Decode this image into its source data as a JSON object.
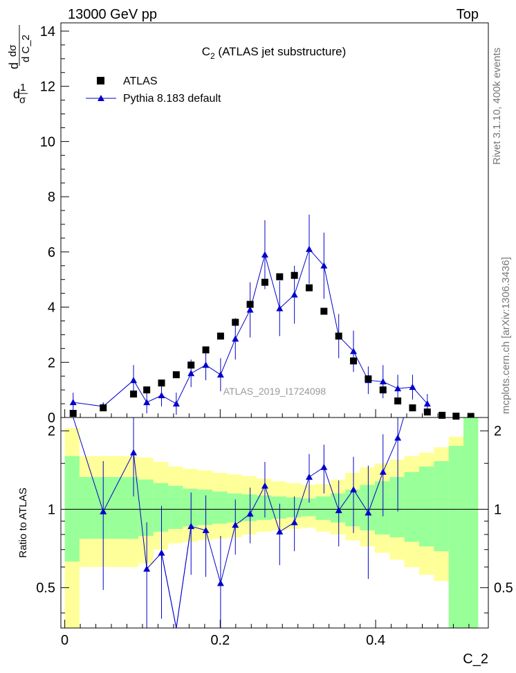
{
  "header": {
    "energy_label": "13000 GeV pp",
    "process_label": "Top"
  },
  "side_labels": {
    "rivet": "Rivet 3.1.10,  400k events",
    "mcplots": "mcplots.cern.ch [arXiv:1306.3436]"
  },
  "chart_data": [
    {
      "type": "scatter",
      "panel": "main",
      "title": "C_2 (ATLAS jet substructure)",
      "title_main": "C",
      "title_sub": "2",
      "title_rest": " (ATLAS jet substructure)",
      "xlabel": "C_2",
      "ylabel": "1/σ dσ/dC_2",
      "ylabel_parts": {
        "one": "1",
        "d1": "d",
        "sigma": "σ",
        "d2": "d",
        "dsigma": "dσ",
        "dc2": "d C_2"
      },
      "xlim": [
        -0.005,
        0.545
      ],
      "ylim": [
        0,
        14.3
      ],
      "yticks": [
        0,
        2,
        4,
        6,
        8,
        10,
        12,
        14
      ],
      "ytick_labels": [
        "0",
        "2",
        "4",
        "6",
        "8",
        "10",
        "12",
        "14"
      ],
      "grid": false,
      "legend_position": "top-left",
      "watermark": "ATLAS_2019_I1724098",
      "series": [
        {
          "name": "ATLAS",
          "color": "#000000",
          "marker": "square",
          "x": [
            0.0108,
            0.0495,
            0.0885,
            0.1055,
            0.1245,
            0.1435,
            0.1625,
            0.1815,
            0.2005,
            0.2195,
            0.2385,
            0.2575,
            0.2765,
            0.2955,
            0.3145,
            0.3335,
            0.3525,
            0.3715,
            0.3905,
            0.4095,
            0.4285,
            0.4475,
            0.4665,
            0.4855,
            0.5035,
            0.5225
          ],
          "y": [
            0.15,
            0.35,
            0.85,
            1.0,
            1.25,
            1.55,
            1.9,
            2.45,
            2.95,
            3.45,
            4.1,
            4.9,
            5.1,
            5.15,
            4.7,
            3.85,
            2.95,
            2.05,
            1.4,
            1.0,
            0.6,
            0.35,
            0.2,
            0.08,
            0.05,
            0.04
          ]
        },
        {
          "name": "Pythia 8.183 default",
          "color": "#0000cc",
          "marker": "triangle",
          "x": [
            0.0108,
            0.0495,
            0.0885,
            0.1055,
            0.1245,
            0.1435,
            0.1625,
            0.1815,
            0.2005,
            0.2195,
            0.2385,
            0.2575,
            0.2765,
            0.2955,
            0.3145,
            0.3335,
            0.3525,
            0.3715,
            0.3905,
            0.4095,
            0.4285,
            0.4475,
            0.4665
          ],
          "y": [
            0.55,
            0.4,
            1.35,
            0.55,
            0.8,
            0.5,
            1.6,
            1.9,
            1.55,
            2.85,
            3.9,
            5.9,
            3.95,
            4.45,
            6.1,
            5.5,
            2.95,
            2.4,
            1.35,
            1.3,
            1.05,
            1.1,
            0.5
          ],
          "yerr": [
            0.35,
            0.15,
            0.55,
            0.4,
            0.4,
            0.4,
            0.5,
            0.55,
            0.6,
            0.75,
            1.0,
            1.25,
            1.0,
            1.05,
            1.25,
            1.2,
            0.8,
            0.75,
            0.5,
            0.6,
            0.5,
            0.45,
            0.35
          ]
        }
      ]
    },
    {
      "type": "scatter",
      "panel": "ratio",
      "ylabel": "Ratio to ATLAS",
      "xlabel": "C_2",
      "xlim": [
        -0.005,
        0.545
      ],
      "ylim": [
        0.35,
        2.25
      ],
      "yticks": [
        0.5,
        1,
        2
      ],
      "ytick_labels": [
        "0.5",
        "1",
        "2"
      ],
      "xticks": [
        0,
        0.2,
        0.4
      ],
      "xtick_labels": [
        "0",
        "0.2",
        "0.4"
      ],
      "reference_line": 1,
      "bands": {
        "bin_edges": [
          0.0,
          0.019,
          0.038,
          0.057,
          0.076,
          0.095,
          0.114,
          0.133,
          0.152,
          0.171,
          0.19,
          0.209,
          0.228,
          0.247,
          0.266,
          0.285,
          0.304,
          0.323,
          0.342,
          0.361,
          0.38,
          0.399,
          0.418,
          0.437,
          0.456,
          0.475,
          0.494,
          0.513,
          0.532
        ],
        "yellow": {
          "color": "#ffff99",
          "low": [
            0.35,
            0.6,
            0.6,
            0.6,
            0.6,
            0.62,
            0.7,
            0.74,
            0.75,
            0.76,
            0.77,
            0.78,
            0.8,
            0.82,
            0.83,
            0.84,
            0.85,
            0.82,
            0.8,
            0.76,
            0.72,
            0.68,
            0.64,
            0.6,
            0.56,
            0.53,
            0.35,
            0.35
          ],
          "high": [
            2.05,
            1.6,
            1.6,
            1.6,
            1.6,
            1.58,
            1.52,
            1.46,
            1.43,
            1.41,
            1.38,
            1.36,
            1.34,
            1.31,
            1.28,
            1.26,
            1.24,
            1.25,
            1.3,
            1.38,
            1.45,
            1.5,
            1.55,
            1.6,
            1.65,
            1.73,
            1.9,
            2.25
          ]
        },
        "green": {
          "color": "#99ff99",
          "low": [
            0.63,
            0.77,
            0.77,
            0.77,
            0.77,
            0.79,
            0.82,
            0.84,
            0.86,
            0.87,
            0.88,
            0.89,
            0.9,
            0.91,
            0.92,
            0.93,
            0.94,
            0.91,
            0.89,
            0.86,
            0.83,
            0.8,
            0.78,
            0.75,
            0.72,
            0.69,
            0.35,
            0.35
          ],
          "high": [
            1.6,
            1.33,
            1.33,
            1.33,
            1.33,
            1.3,
            1.26,
            1.23,
            1.2,
            1.19,
            1.17,
            1.15,
            1.14,
            1.13,
            1.12,
            1.11,
            1.1,
            1.12,
            1.15,
            1.19,
            1.24,
            1.28,
            1.33,
            1.39,
            1.46,
            1.53,
            1.75,
            2.25
          ]
        }
      },
      "series": [
        {
          "name": "Pythia 8.183 default",
          "color": "#0000cc",
          "marker": "triangle",
          "x": [
            0.0495,
            0.0885,
            0.1055,
            0.1245,
            0.1625,
            0.1815,
            0.2005,
            0.2195,
            0.2385,
            0.2575,
            0.2765,
            0.2955,
            0.3145,
            0.3335,
            0.3525,
            0.3715,
            0.3905,
            0.4095,
            0.4285
          ],
          "y": [
            0.98,
            1.65,
            0.59,
            0.68,
            0.86,
            0.83,
            0.52,
            0.87,
            0.96,
            1.23,
            0.82,
            0.89,
            1.33,
            1.45,
            0.99,
            1.19,
            0.97,
            1.39,
            1.88
          ],
          "yerr_low": [
            0.49,
            0.53,
            0.25,
            0.3,
            0.3,
            0.28,
            0.17,
            0.2,
            0.22,
            0.3,
            0.21,
            0.2,
            0.27,
            0.3,
            0.27,
            0.38,
            0.43,
            0.45,
            0.9
          ],
          "yerr_high": [
            0.55,
            0.6,
            0.3,
            0.35,
            0.3,
            0.3,
            0.27,
            0.22,
            0.25,
            0.29,
            0.23,
            0.23,
            0.3,
            0.32,
            0.3,
            0.4,
            0.5,
            0.55,
            0.6
          ]
        }
      ],
      "offscale_segments": [
        {
          "from_x": 0.0108,
          "from_y": 2.25,
          "to_x": 0.0495,
          "to_y": 0.98
        },
        {
          "from_x": 0.1245,
          "from_y": 0.68,
          "to_x": 0.1435,
          "to_y": 0.35
        },
        {
          "from_x": 0.1435,
          "from_y": 0.35,
          "to_x": 0.1625,
          "to_y": 0.86
        },
        {
          "from_x": 0.4285,
          "from_y": 1.88,
          "to_x": 0.436,
          "to_y": 2.25
        }
      ]
    }
  ]
}
